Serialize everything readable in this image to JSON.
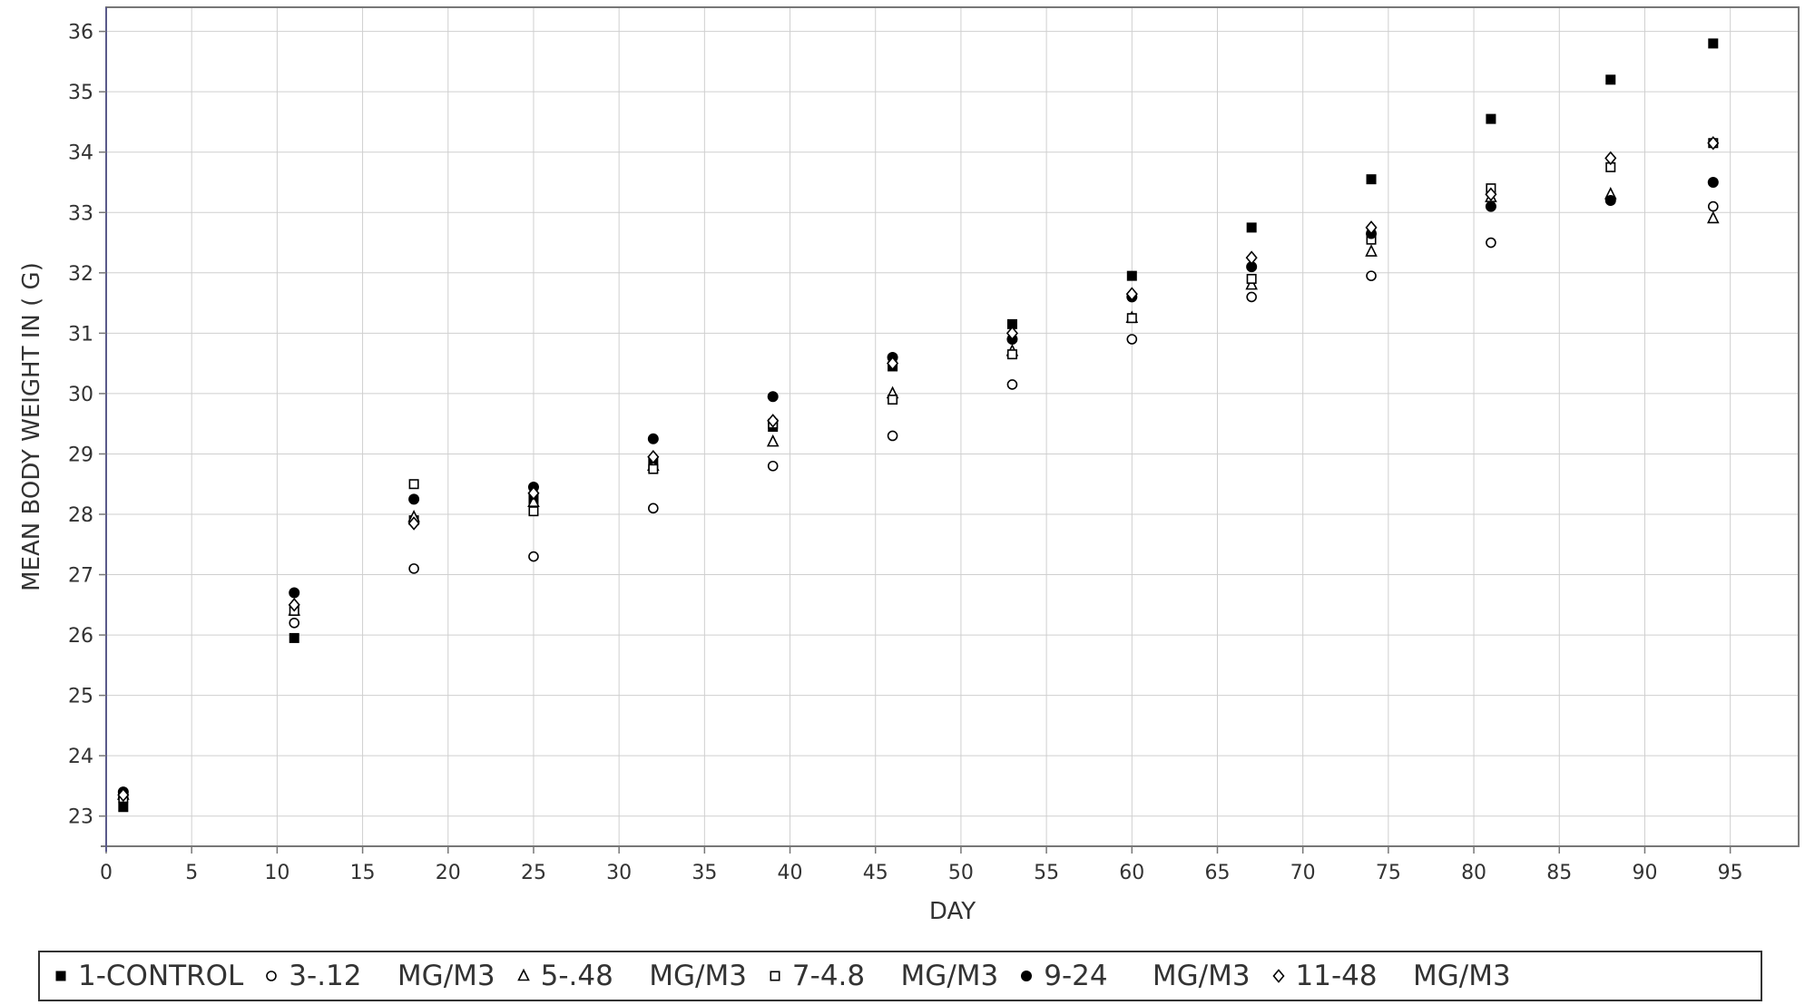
{
  "chart_data": {
    "type": "scatter",
    "title": "",
    "xlabel": "DAY",
    "ylabel": "MEAN BODY WEIGHT IN ( G)",
    "xlim": [
      0,
      99
    ],
    "ylim": [
      22.5,
      36.4
    ],
    "x_ticks": [
      0,
      5,
      10,
      15,
      20,
      25,
      30,
      35,
      40,
      45,
      50,
      55,
      60,
      65,
      70,
      75,
      80,
      85,
      90,
      95
    ],
    "y_ticks": [
      23,
      24,
      25,
      26,
      27,
      28,
      29,
      30,
      31,
      32,
      33,
      34,
      35,
      36
    ],
    "grid": true,
    "legend_position": "bottom",
    "x": [
      1,
      11,
      18,
      25,
      32,
      39,
      46,
      53,
      60,
      67,
      74,
      81,
      88,
      94
    ],
    "series": [
      {
        "name": "1-CONTROL",
        "marker": "square-filled",
        "values": [
          23.15,
          25.95,
          27.9,
          28.25,
          28.85,
          29.45,
          30.45,
          31.15,
          31.95,
          32.75,
          33.55,
          34.55,
          35.2,
          35.8
        ]
      },
      {
        "name": "3-.12    MG/M3",
        "marker": "circle-open",
        "values": [
          23.3,
          26.2,
          27.1,
          27.3,
          28.1,
          28.8,
          29.3,
          30.15,
          30.9,
          31.6,
          31.95,
          32.5,
          33.2,
          33.1
        ]
      },
      {
        "name": "5-.48    MG/M3",
        "marker": "triangle-open",
        "values": [
          23.35,
          26.4,
          27.95,
          28.2,
          28.8,
          29.2,
          30.0,
          30.7,
          31.25,
          31.8,
          32.35,
          33.25,
          33.3,
          32.9
        ]
      },
      {
        "name": "7-4.8    MG/M3",
        "marker": "square-open",
        "values": [
          23.3,
          26.4,
          28.5,
          28.05,
          28.75,
          29.5,
          29.9,
          30.65,
          31.25,
          31.9,
          32.55,
          33.4,
          33.75,
          34.15
        ]
      },
      {
        "name": "9-24     MG/M3",
        "marker": "circle-filled",
        "values": [
          23.4,
          26.7,
          28.25,
          28.45,
          29.25,
          29.95,
          30.6,
          30.9,
          31.6,
          32.1,
          32.65,
          33.1,
          33.2,
          33.5
        ]
      },
      {
        "name": "11-48    MG/M3",
        "marker": "diamond-open",
        "values": [
          23.35,
          26.5,
          27.85,
          28.35,
          28.95,
          29.55,
          30.5,
          31.0,
          31.65,
          32.25,
          32.75,
          33.3,
          33.9,
          34.15
        ]
      }
    ]
  }
}
